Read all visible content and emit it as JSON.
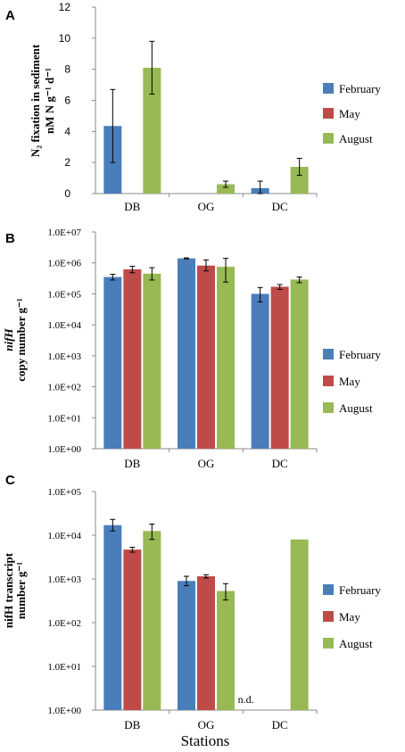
{
  "colors": {
    "February": "#4a7ebb",
    "May": "#be4b48",
    "August": "#98b954"
  },
  "legend": {
    "items": [
      "February",
      "May",
      "August"
    ],
    "position": "right"
  },
  "xlabel": "Stations",
  "chart_data": [
    {
      "panel": "A",
      "type": "bar",
      "ylabel_line1": "N₂ fixation in sediment",
      "ylabel_line2": "nM N g⁻¹ d⁻¹",
      "categories": [
        "DB",
        "OG",
        "DC"
      ],
      "ylim": [
        0,
        12
      ],
      "yticks": [
        0,
        2,
        4,
        6,
        8,
        10,
        12
      ],
      "ytick_labels": [
        "0",
        "2",
        "4",
        "6",
        "8",
        "10",
        "12"
      ],
      "scale": "linear",
      "series": [
        {
          "name": "February",
          "values": [
            4.35,
            null,
            0.35
          ],
          "errors": [
            2.35,
            null,
            0.45
          ]
        },
        {
          "name": "May",
          "values": [
            null,
            null,
            null
          ],
          "errors": [
            null,
            null,
            null
          ]
        },
        {
          "name": "August",
          "values": [
            8.1,
            0.6,
            1.72
          ],
          "errors": [
            1.7,
            0.2,
            0.55
          ]
        }
      ]
    },
    {
      "panel": "B",
      "type": "bar",
      "ylabel_line1": "nifH",
      "ylabel_line2": "copy number g⁻¹",
      "categories": [
        "DB",
        "OG",
        "DC"
      ],
      "scale": "log",
      "ylim": [
        1,
        10000000
      ],
      "yticks": [
        1,
        10,
        100,
        1000,
        10000,
        100000,
        1000000,
        10000000
      ],
      "ytick_labels": [
        "1.0E+00",
        "1.0E+01",
        "1.0E+02",
        "1.0E+03",
        "1.0E+04",
        "1.0E+05",
        "1.0E+06",
        "1.0E+07"
      ],
      "series": [
        {
          "name": "February",
          "values": [
            350000,
            1400000,
            100000
          ],
          "errors": [
            [
              280000,
              430000
            ],
            [
              1350000,
              1450000
            ],
            [
              55000,
              160000
            ]
          ]
        },
        {
          "name": "May",
          "values": [
            620000,
            820000,
            170000
          ],
          "errors": [
            [
              480000,
              780000
            ],
            [
              550000,
              1250000
            ],
            [
              140000,
              200000
            ]
          ]
        },
        {
          "name": "August",
          "values": [
            450000,
            750000,
            290000
          ],
          "errors": [
            [
              280000,
              700000
            ],
            [
              240000,
              1400000
            ],
            [
              230000,
              350000
            ]
          ]
        }
      ]
    },
    {
      "panel": "C",
      "type": "bar",
      "ylabel_line1": "nifH transcript",
      "ylabel_line2": "number g⁻¹",
      "categories": [
        "DB",
        "OG",
        "DC"
      ],
      "scale": "log",
      "ylim": [
        1,
        100000
      ],
      "yticks": [
        1,
        10,
        100,
        1000,
        10000,
        100000
      ],
      "ytick_labels": [
        "1.0E+00",
        "1.0E+01",
        "1.0E+02",
        "1.0E+03",
        "1.0E+04",
        "1.0E+05"
      ],
      "annotation": "n.d.",
      "series": [
        {
          "name": "February",
          "values": [
            17000,
            900,
            null
          ],
          "errors": [
            [
              12500,
              23000
            ],
            [
              700,
              1150
            ],
            null
          ]
        },
        {
          "name": "May",
          "values": [
            4700,
            1150,
            null
          ],
          "errors": [
            [
              4100,
              5300
            ],
            [
              1050,
              1250
            ],
            null
          ]
        },
        {
          "name": "August",
          "values": [
            12500,
            530,
            8000
          ],
          "errors": [
            [
              8000,
              18000
            ],
            [
              330,
              780
            ],
            null
          ]
        }
      ]
    }
  ]
}
